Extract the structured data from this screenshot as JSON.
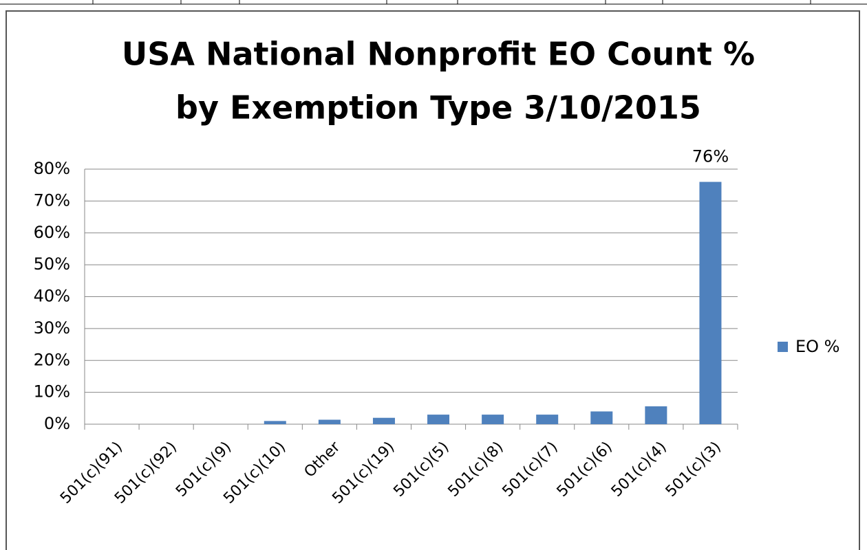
{
  "chart_data": {
    "type": "bar",
    "title": [
      "USA National Nonprofit EO Count  %",
      "by Exemption Type 3/10/2015"
    ],
    "categories": [
      "501(c)(91)",
      "501(c)(92)",
      "501(c)(9)",
      "501(c)(10)",
      "Other",
      "501(c)(19)",
      "501(c)(5)",
      "501(c)(8)",
      "501(c)(7)",
      "501(c)(6)",
      "501(c)(4)",
      "501(c)(3)"
    ],
    "series": [
      {
        "name": "EO %",
        "color": "#4f81bd",
        "values": [
          0,
          0,
          0,
          1,
          1.4,
          2,
          3,
          3,
          3,
          4,
          5.6,
          76
        ],
        "value_labels": [
          null,
          null,
          null,
          null,
          null,
          null,
          null,
          null,
          null,
          null,
          null,
          "76%"
        ]
      }
    ],
    "ylim": [
      0,
      80
    ],
    "yticks": [
      {
        "value": 0,
        "label": "0%"
      },
      {
        "value": 10,
        "label": "10%"
      },
      {
        "value": 20,
        "label": "20%"
      },
      {
        "value": 30,
        "label": "30%"
      },
      {
        "value": 40,
        "label": "40%"
      },
      {
        "value": 50,
        "label": "50%"
      },
      {
        "value": 60,
        "label": "60%"
      },
      {
        "value": 70,
        "label": "70%"
      },
      {
        "value": 80,
        "label": "80%"
      }
    ],
    "grid": true,
    "legend": "right"
  }
}
